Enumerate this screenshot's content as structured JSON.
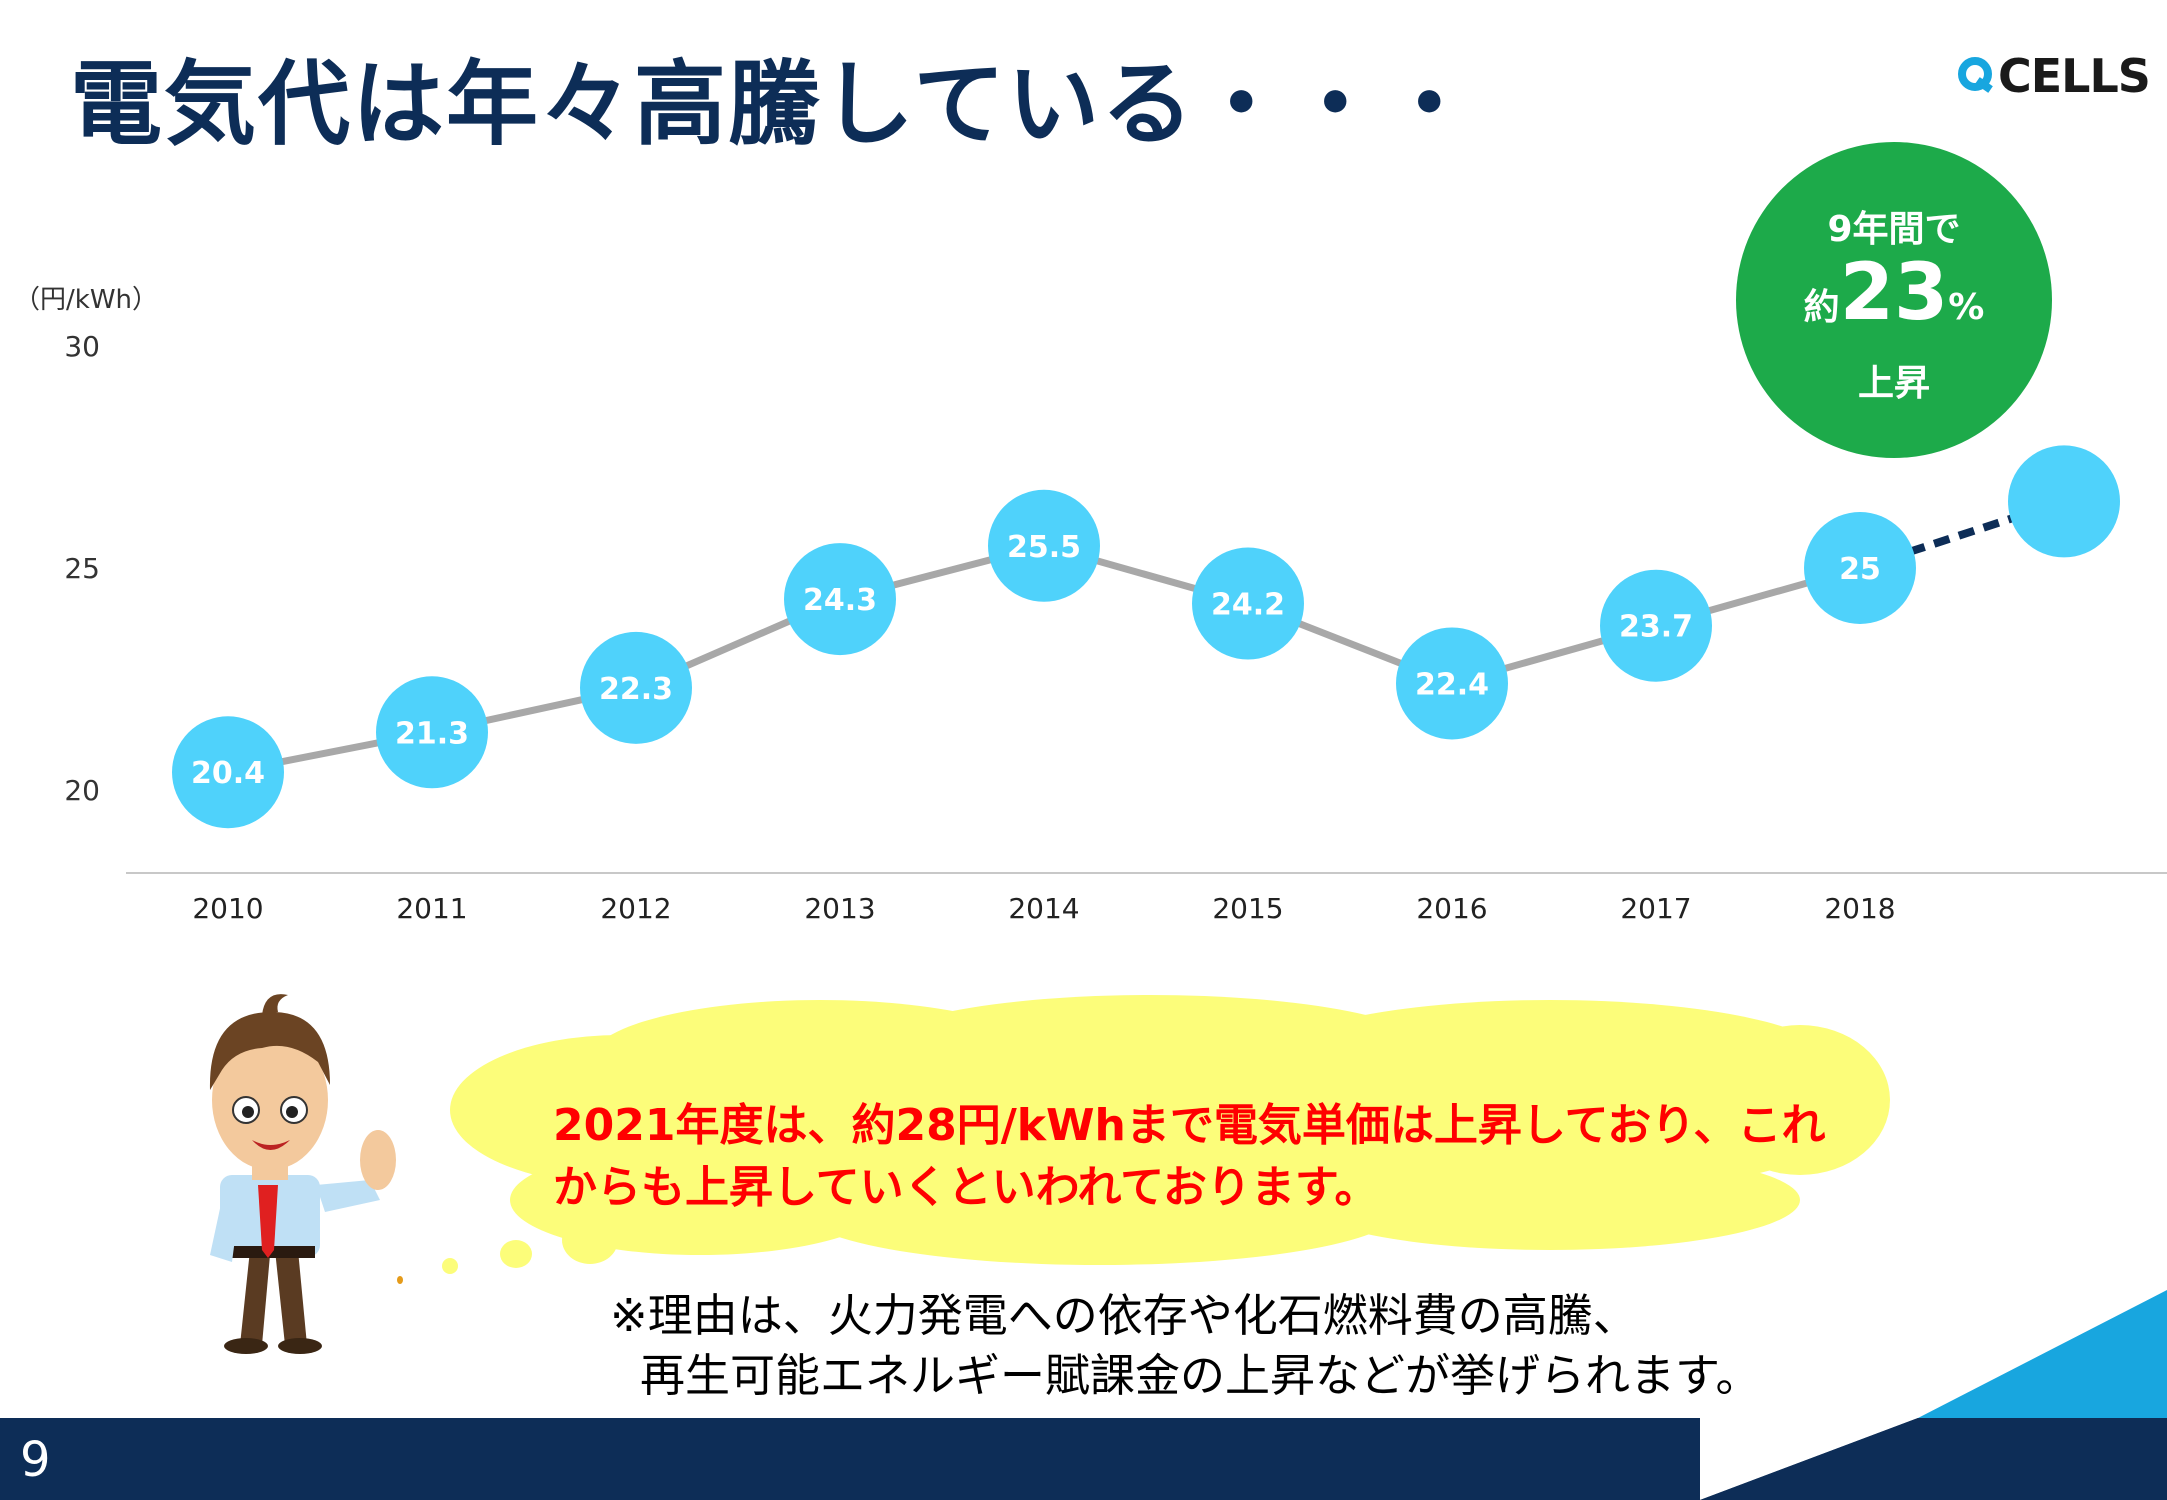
{
  "slide": {
    "title": "電気代は年々高騰している・・・",
    "logo_text": "CELLS",
    "page_number": "9"
  },
  "badge": {
    "line1": "9年間で",
    "prefix": "約",
    "number": "23",
    "suffix": "%",
    "line3": "上昇"
  },
  "speech_cloud": {
    "text": "2021年度は、約28円/kWhまで電気単価は上昇しており、これからも上昇していくといわれております。"
  },
  "note": {
    "line1": "※理由は、火力発電への依存や化石燃料費の高騰、",
    "line2": "再生可能エネルギー賦課金の上昇などが挙げられます。"
  },
  "colors": {
    "title": "#0d2d57",
    "navy_band": "#0d2d57",
    "accent_blue": "#18a6df",
    "point_fill": "#4fd2fb",
    "line": "#a8a8a8",
    "badge_green": "#1daa4a",
    "cloud_yellow": "#fcfd7a",
    "cloud_text": "#ff0000"
  },
  "chart_data": {
    "type": "line",
    "unit_label": "（円/kWh）",
    "categories": [
      "2010",
      "2011",
      "2012",
      "2013",
      "2014",
      "2015",
      "2016",
      "2017",
      "2018"
    ],
    "values": [
      20.4,
      21.3,
      22.3,
      24.3,
      25.5,
      24.2,
      22.4,
      23.7,
      25
    ],
    "data_labels": [
      "20.4",
      "21.3",
      "22.3",
      "24.3",
      "25.5",
      "24.2",
      "22.4",
      "23.7",
      "25"
    ],
    "y_ticks": [
      "30",
      "25",
      "20"
    ],
    "ylim": [
      20,
      30
    ],
    "projection": {
      "from_index": 8,
      "to_value": 26.5
    },
    "grid": false,
    "legend": "none"
  }
}
